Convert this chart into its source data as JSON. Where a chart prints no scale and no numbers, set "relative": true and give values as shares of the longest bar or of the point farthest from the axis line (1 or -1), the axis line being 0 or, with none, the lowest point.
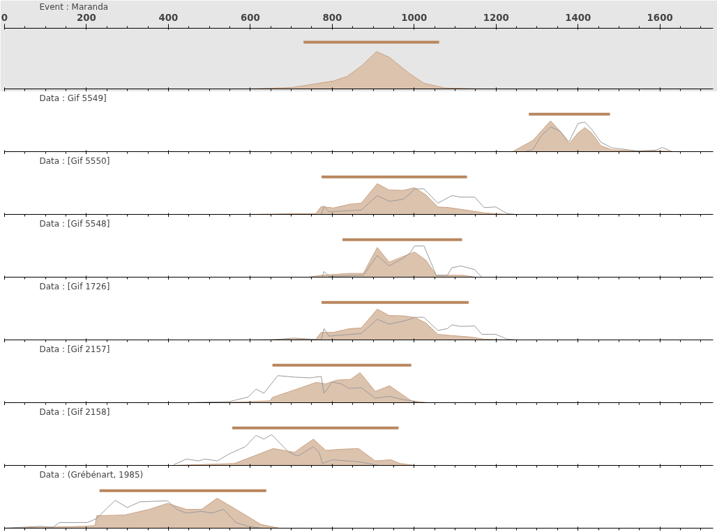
{
  "chart_data": [
    {
      "type": "area",
      "title": "Event : Maranda",
      "relative": true,
      "xlim": [
        0,
        1730
      ],
      "xticks": [
        0,
        200,
        400,
        600,
        800,
        1000,
        1200,
        1400,
        1600
      ],
      "tick_labels": "x",
      "grid": false,
      "series": [
        {
          "color": "#dcc3ae",
          "x": [
            600,
            702,
            803,
            837,
            871,
            908,
            939,
            990,
            1024,
            1075,
            1160
          ],
          "values": [
            0,
            0.03,
            0.17,
            0.27,
            0.49,
            0.8,
            0.68,
            0.32,
            0.12,
            0.02,
            0
          ]
        },
        {
          "type": "line",
          "color": "#b8865e",
          "x": [
            730,
            1061
          ],
          "values": [
            1,
            1
          ]
        }
      ]
    },
    {
      "type": "area",
      "title": "Data : Gif 5549]",
      "relative": true,
      "xlim": [
        0,
        1730
      ],
      "xticks": [
        0,
        200,
        400,
        600,
        800,
        1000,
        1200,
        1400,
        1600
      ],
      "tick_labels": false,
      "grid": false,
      "series": [
        {
          "color": "#dcc3ae",
          "x": [
            1240,
            1290,
            1333,
            1356,
            1378,
            1400,
            1417,
            1433,
            1456,
            1483,
            1544,
            1611,
            1633
          ],
          "values": [
            0,
            0.3,
            0.82,
            0.55,
            0.21,
            0.5,
            0.64,
            0.5,
            0.16,
            0.05,
            0.02,
            0.02,
            0
          ]
        },
        {
          "type": "line",
          "color": "#999999",
          "x": [
            1270,
            1289,
            1311,
            1333,
            1356,
            1378,
            1400,
            1417,
            1433,
            1456,
            1483,
            1544,
            1590,
            1606,
            1630
          ],
          "values": [
            0,
            0.05,
            0.43,
            0.66,
            0.55,
            0.26,
            0.75,
            0.79,
            0.6,
            0.25,
            0.1,
            0.02,
            0.04,
            0.11,
            0
          ]
        },
        {
          "type": "line",
          "color": "#b8865e",
          "x": [
            1280,
            1478
          ],
          "values": [
            1,
            1
          ]
        }
      ]
    },
    {
      "type": "area",
      "title": "Data : [Gif 5550]",
      "relative": true,
      "xlim": [
        0,
        1730
      ],
      "xticks": [
        0,
        200,
        400,
        600,
        800,
        1000,
        1200,
        1400,
        1600
      ],
      "tick_labels": false,
      "grid": false,
      "series": [
        {
          "type": "area",
          "color": "#dcc3ae",
          "x": [
            600,
            707,
            760,
            773,
            803,
            842,
            871,
            910,
            939,
            973,
            1001,
            1029,
            1058,
            1086,
            1136,
            1171,
            1227
          ],
          "values": [
            0,
            0.02,
            0.02,
            0.21,
            0.17,
            0.27,
            0.3,
            0.82,
            0.65,
            0.64,
            0.71,
            0.52,
            0.2,
            0.18,
            0.1,
            0.04,
            0
          ]
        },
        {
          "type": "line",
          "color": "#999999",
          "x": [
            773,
            780,
            792,
            871,
            910,
            939,
            973,
            990,
            1001,
            1024,
            1058,
            1092,
            1114,
            1148,
            1171,
            1199,
            1227,
            1250
          ],
          "values": [
            0,
            0.22,
            0.07,
            0.12,
            0.5,
            0.35,
            0.4,
            0.55,
            0.68,
            0.68,
            0.3,
            0.5,
            0.46,
            0.46,
            0.18,
            0.2,
            0.02,
            0
          ]
        },
        {
          "type": "line",
          "color": "#b8865e",
          "x": [
            774,
            1129
          ],
          "values": [
            1,
            1
          ]
        }
      ]
    },
    {
      "type": "area",
      "title": "Data : [Gif 5548]",
      "relative": true,
      "xlim": [
        0,
        1730
      ],
      "xticks": [
        0,
        200,
        400,
        600,
        800,
        1000,
        1200,
        1400,
        1600
      ],
      "tick_labels": false,
      "grid": false,
      "series": [
        {
          "color": "#dcc3ae",
          "x": [
            740,
            775,
            842,
            876,
            910,
            939,
            973,
            1001,
            1029,
            1054,
            1120,
            1150
          ],
          "values": [
            0,
            0.05,
            0.1,
            0.1,
            0.79,
            0.4,
            0.55,
            0.67,
            0.45,
            0.05,
            0.05,
            0
          ]
        },
        {
          "type": "line",
          "color": "#999999",
          "x": [
            775,
            780,
            792,
            876,
            910,
            939,
            973,
            990,
            1001,
            1024,
            1054,
            1081,
            1092,
            1114,
            1148,
            1165
          ],
          "values": [
            0,
            0.15,
            0.02,
            0.05,
            0.58,
            0.3,
            0.5,
            0.65,
            0.83,
            0.83,
            0.05,
            0.05,
            0.25,
            0.3,
            0.2,
            0
          ]
        },
        {
          "type": "line",
          "color": "#b8865e",
          "x": [
            825,
            1117
          ],
          "values": [
            1,
            1
          ]
        }
      ]
    },
    {
      "type": "area",
      "title": "Data : [Gif 1726]",
      "relative": true,
      "xlim": [
        0,
        1730
      ],
      "xticks": [
        0,
        200,
        400,
        600,
        800,
        1000,
        1200,
        1400,
        1600
      ],
      "tick_labels": false,
      "grid": false,
      "series": [
        {
          "type": "area",
          "color": "#dcc3ae",
          "x": [
            600,
            707,
            760,
            773,
            803,
            842,
            871,
            910,
            939,
            973,
            1001,
            1029,
            1058,
            1086,
            1136,
            1171,
            1227
          ],
          "values": [
            0,
            0.02,
            0.02,
            0.2,
            0.2,
            0.3,
            0.32,
            0.82,
            0.65,
            0.64,
            0.6,
            0.45,
            0.15,
            0.12,
            0.08,
            0.02,
            0
          ]
        },
        {
          "type": "line",
          "color": "#999999",
          "x": [
            650,
            707,
            773,
            780,
            792,
            871,
            910,
            939,
            973,
            990,
            1001,
            1024,
            1058,
            1081,
            1092,
            1114,
            1148,
            1165,
            1199,
            1227,
            1250
          ],
          "values": [
            0,
            0.05,
            0,
            0.3,
            0.1,
            0.17,
            0.55,
            0.42,
            0.5,
            0.55,
            0.6,
            0.6,
            0.25,
            0.3,
            0.4,
            0.36,
            0.37,
            0.15,
            0.15,
            0.02,
            0
          ]
        },
        {
          "type": "line",
          "color": "#b8865e",
          "x": [
            774,
            1133
          ],
          "values": [
            1,
            1
          ]
        }
      ]
    },
    {
      "type": "area",
      "title": "Data : [Gif 2157]",
      "relative": true,
      "xlim": [
        0,
        1730
      ],
      "xticks": [
        0,
        200,
        400,
        600,
        800,
        1000,
        1200,
        1400,
        1600
      ],
      "tick_labels": false,
      "grid": false,
      "series": [
        {
          "color": "#dcc3ae",
          "x": [
            444,
            554,
            648,
            654,
            708,
            761,
            784,
            811,
            845,
            868,
            905,
            940,
            973,
            993,
            1034
          ],
          "values": [
            0,
            0.01,
            0.05,
            0.14,
            0.34,
            0.54,
            0.5,
            0.6,
            0.62,
            0.8,
            0.3,
            0.45,
            0.2,
            0.05,
            0
          ]
        },
        {
          "type": "line",
          "color": "#999999",
          "x": [
            444,
            550,
            595,
            614,
            633,
            667,
            708,
            746,
            773,
            780,
            800,
            822,
            841,
            871,
            905,
            940,
            973,
            993,
            1011
          ],
          "values": [
            0,
            0.03,
            0.15,
            0.36,
            0.25,
            0.72,
            0.68,
            0.66,
            0.7,
            0.25,
            0.55,
            0.5,
            0.38,
            0.4,
            0.12,
            0.17,
            0.08,
            0.05,
            0
          ]
        },
        {
          "type": "line",
          "color": "#b8865e",
          "x": [
            654,
            993
          ],
          "values": [
            1,
            1
          ]
        }
      ]
    },
    {
      "type": "area",
      "title": "Data : [Gif 2158]",
      "relative": true,
      "xlim": [
        0,
        1730
      ],
      "xticks": [
        0,
        200,
        400,
        600,
        800,
        1000,
        1200,
        1400,
        1600
      ],
      "tick_labels": false,
      "grid": false,
      "series": [
        {
          "color": "#dcc3ae",
          "x": [
            413,
            561,
            656,
            708,
            754,
            784,
            822,
            864,
            905,
            943,
            966,
            1003
          ],
          "values": [
            0,
            0.05,
            0.45,
            0.35,
            0.7,
            0.4,
            0.43,
            0.45,
            0.12,
            0.15,
            0.05,
            0
          ]
        },
        {
          "type": "line",
          "color": "#999999",
          "x": [
            413,
            444,
            474,
            489,
            520,
            547,
            588,
            614,
            633,
            652,
            694,
            716,
            754,
            768,
            776,
            800,
            861,
            890,
            913
          ],
          "values": [
            0.02,
            0.17,
            0.12,
            0.17,
            0.12,
            0.3,
            0.5,
            0.8,
            0.7,
            0.82,
            0.35,
            0.25,
            0.5,
            0.35,
            0.05,
            0.15,
            0.1,
            0.05,
            0
          ]
        },
        {
          "type": "line",
          "color": "#b8865e",
          "x": [
            556,
            962
          ],
          "values": [
            1,
            1
          ]
        }
      ]
    },
    {
      "type": "area",
      "title": "Data : (Grébénart, 1985)",
      "relative": true,
      "xlim": [
        0,
        1730
      ],
      "xticks": [
        0,
        200,
        400,
        600,
        800,
        1000,
        1200,
        1400,
        1600
      ],
      "tick_labels": false,
      "grid": false,
      "series": [
        {
          "color": "#dcc3ae",
          "x": [
            0,
            194,
            221,
            225,
            293,
            353,
            398,
            444,
            481,
            519,
            565,
            626,
            671
          ],
          "values": [
            0,
            0.05,
            0.07,
            0.33,
            0.35,
            0.5,
            0.66,
            0.5,
            0.5,
            0.8,
            0.5,
            0.1,
            0
          ]
        },
        {
          "type": "line",
          "color": "#999999",
          "x": [
            0,
            88,
            118,
            134,
            202,
            224,
            270,
            300,
            330,
            398,
            421,
            444,
            481,
            505,
            535,
            565,
            595,
            626
          ],
          "values": [
            0,
            0.05,
            0.02,
            0.15,
            0.15,
            0.25,
            0.74,
            0.55,
            0.7,
            0.73,
            0.5,
            0.4,
            0.45,
            0.4,
            0.5,
            0.15,
            0.05,
            0
          ]
        },
        {
          "type": "line",
          "color": "#b8865e",
          "x": [
            232,
            639
          ],
          "values": [
            1,
            1
          ]
        }
      ]
    }
  ]
}
